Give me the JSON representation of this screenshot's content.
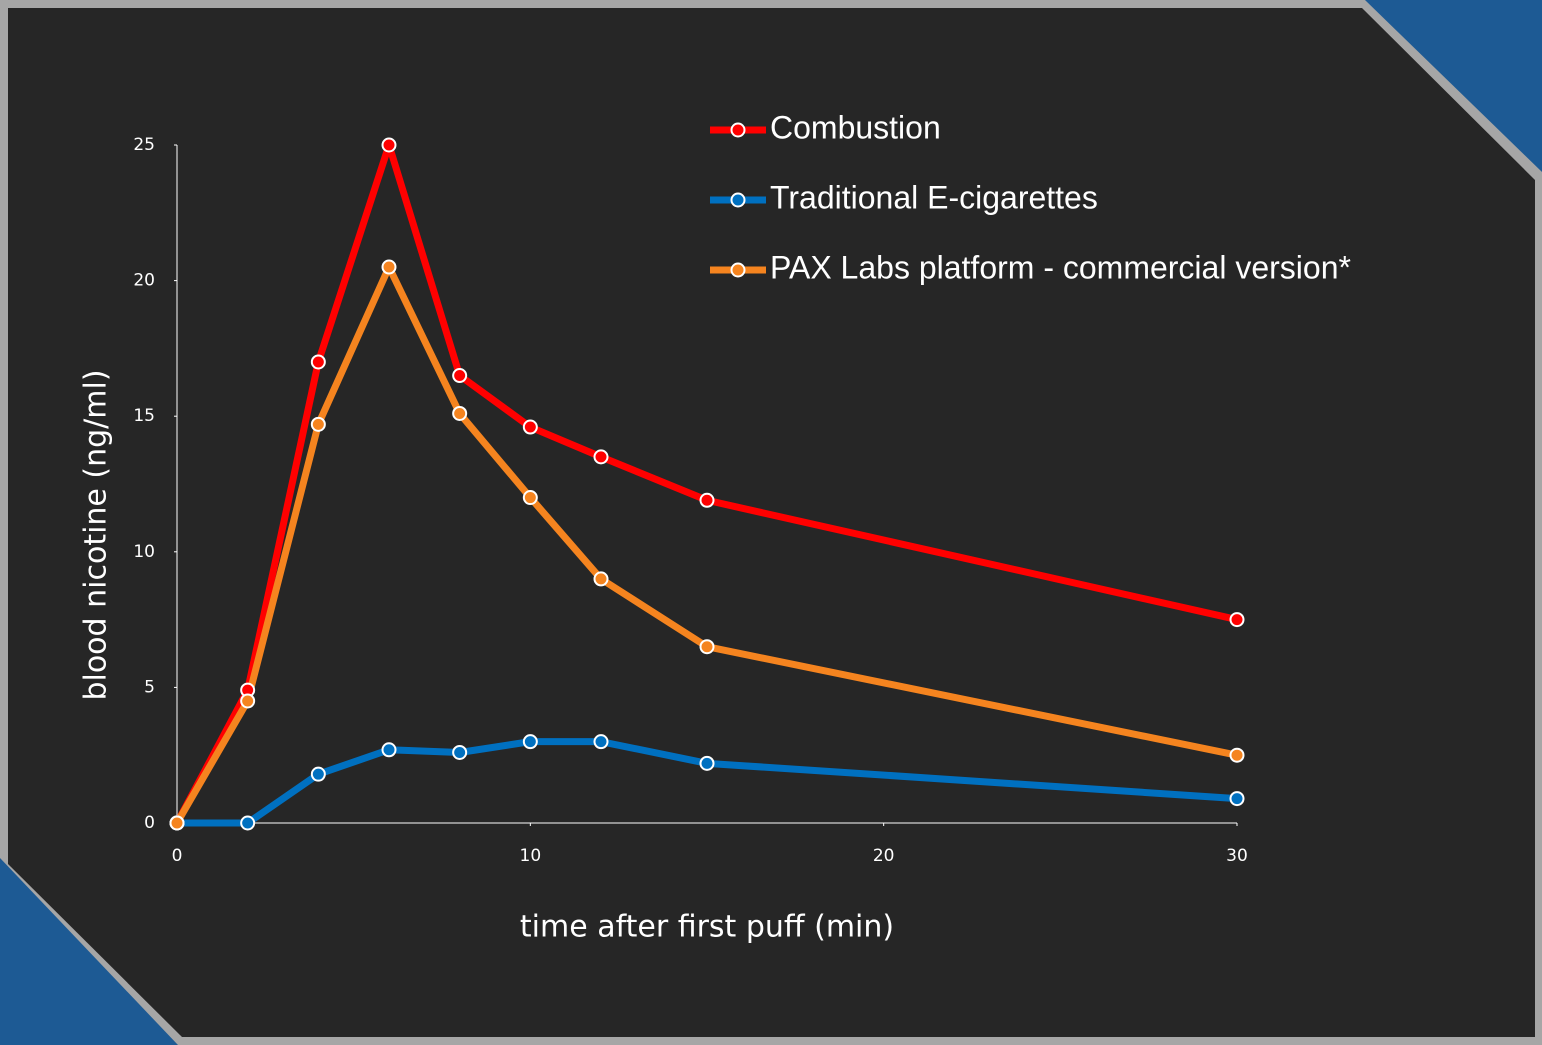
{
  "chart_data": {
    "type": "line",
    "x": [
      0,
      2,
      4,
      6,
      8,
      10,
      12,
      15,
      30
    ],
    "series": [
      {
        "name": "Combustion",
        "color": "#ff0000",
        "values": [
          0,
          4.9,
          17,
          25,
          16.5,
          14.6,
          13.5,
          11.9,
          7.5
        ]
      },
      {
        "name": "Traditional E-cigarettes",
        "color": "#0070c0",
        "values": [
          0,
          0,
          1.8,
          2.7,
          2.6,
          3.0,
          3.0,
          2.2,
          0.9
        ]
      },
      {
        "name": "PAX Labs platform - commercial version*",
        "color": "#f5841f",
        "values": [
          0,
          4.5,
          14.7,
          20.5,
          15.1,
          12,
          9,
          6.5,
          2.5
        ]
      }
    ],
    "xlabel": "time after first puff (min)",
    "ylabel": "blood nicotine (ng/ml)",
    "xlim": [
      0,
      30
    ],
    "xticks": [
      0,
      10,
      20,
      30
    ],
    "ylim": [
      0,
      25
    ],
    "yticks": [
      0,
      5,
      10,
      15,
      20,
      25
    ]
  }
}
